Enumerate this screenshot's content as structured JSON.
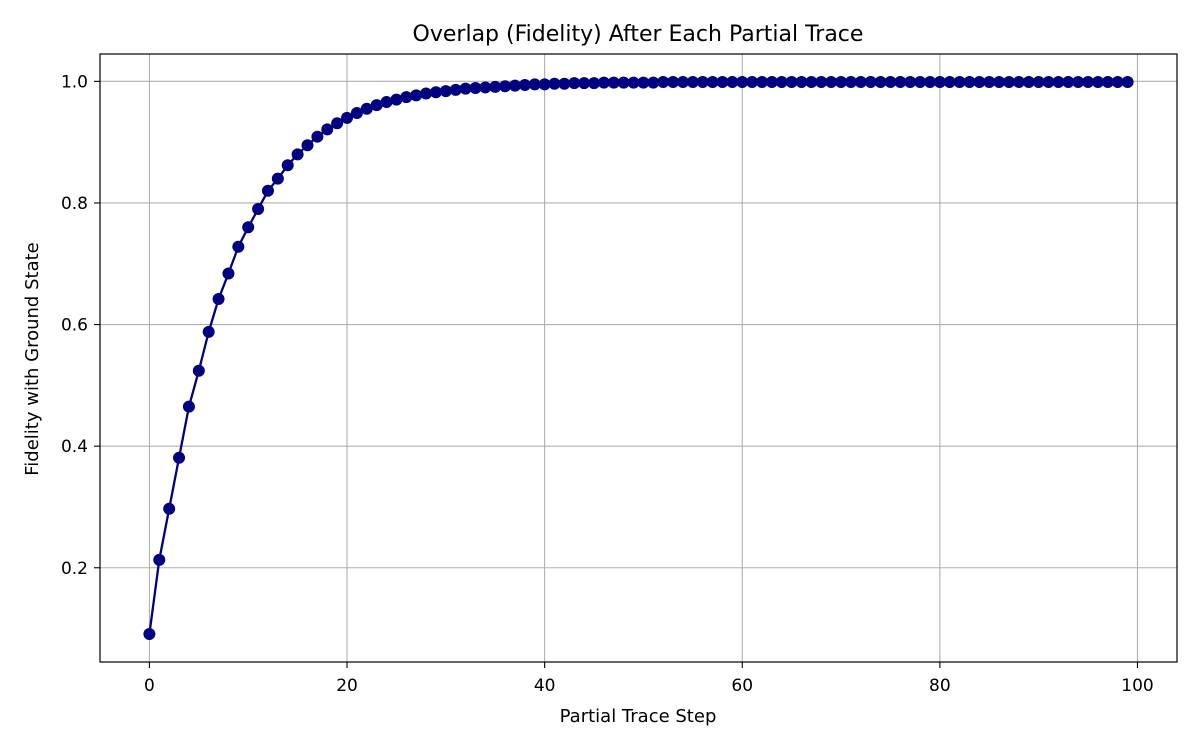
{
  "chart_data": {
    "type": "line",
    "title": "Overlap (Fidelity) After Each Partial Trace",
    "xlabel": "Partial Trace Step",
    "ylabel": "Fidelity with Ground State",
    "xlim": [
      -5,
      104
    ],
    "ylim": [
      0.045,
      1.045
    ],
    "xticks": [
      0,
      20,
      40,
      60,
      80,
      100
    ],
    "xtick_labels": [
      "0",
      "20",
      "40",
      "60",
      "80",
      "100"
    ],
    "yticks": [
      0.2,
      0.4,
      0.6,
      0.8,
      1.0
    ],
    "ytick_labels": [
      "0.2",
      "0.4",
      "0.6",
      "0.8",
      "1.0"
    ],
    "grid": true,
    "legend": "none",
    "series": [
      {
        "color": "#000080",
        "marker": "circle",
        "x": [
          0,
          1,
          2,
          3,
          4,
          5,
          6,
          7,
          8,
          9,
          10,
          11,
          12,
          13,
          14,
          15,
          16,
          17,
          18,
          19,
          20,
          21,
          22,
          23,
          24,
          25,
          26,
          27,
          28,
          29,
          30,
          31,
          32,
          33,
          34,
          35,
          36,
          37,
          38,
          39,
          40,
          41,
          42,
          43,
          44,
          45,
          46,
          47,
          48,
          49,
          50,
          51,
          52,
          53,
          54,
          55,
          56,
          57,
          58,
          59,
          60,
          61,
          62,
          63,
          64,
          65,
          66,
          67,
          68,
          69,
          70,
          71,
          72,
          73,
          74,
          75,
          76,
          77,
          78,
          79,
          80,
          81,
          82,
          83,
          84,
          85,
          86,
          87,
          88,
          89,
          90,
          91,
          92,
          93,
          94,
          95,
          96,
          97,
          98,
          99
        ],
        "values": [
          0.091,
          0.213,
          0.297,
          0.381,
          0.465,
          0.524,
          0.588,
          0.642,
          0.684,
          0.728,
          0.76,
          0.79,
          0.82,
          0.84,
          0.862,
          0.88,
          0.895,
          0.909,
          0.921,
          0.931,
          0.94,
          0.948,
          0.955,
          0.961,
          0.966,
          0.97,
          0.974,
          0.977,
          0.98,
          0.982,
          0.984,
          0.986,
          0.988,
          0.989,
          0.99,
          0.991,
          0.992,
          0.993,
          0.994,
          0.995,
          0.995,
          0.996,
          0.996,
          0.997,
          0.997,
          0.997,
          0.998,
          0.998,
          0.998,
          0.998,
          0.998,
          0.998,
          0.999,
          0.999,
          0.999,
          0.999,
          0.999,
          0.999,
          0.999,
          0.999,
          0.999,
          0.999,
          0.999,
          0.999,
          0.999,
          0.999,
          0.999,
          0.999,
          0.999,
          0.999,
          0.999,
          0.999,
          0.999,
          0.999,
          0.999,
          0.999,
          0.999,
          0.999,
          0.999,
          0.999,
          0.999,
          0.999,
          0.999,
          0.999,
          0.999,
          0.999,
          0.999,
          0.999,
          0.999,
          0.999,
          0.999,
          0.999,
          0.999,
          0.999,
          0.999,
          0.999,
          0.999,
          0.999,
          0.999,
          0.999
        ]
      }
    ]
  }
}
